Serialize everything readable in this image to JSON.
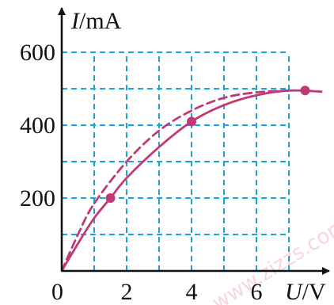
{
  "chart_data": {
    "type": "line",
    "xlabel": {
      "symbol": "U",
      "unit": "/V"
    },
    "ylabel": {
      "symbol": "I",
      "unit": "/mA"
    },
    "origin_label": "0",
    "xlim": [
      0,
      8
    ],
    "ylim": [
      0,
      600
    ],
    "x_ticks": [
      {
        "value": 2,
        "label": "2"
      },
      {
        "value": 4,
        "label": "4"
      },
      {
        "value": 6,
        "label": "6"
      }
    ],
    "y_ticks": [
      {
        "value": 200,
        "label": "200"
      },
      {
        "value": 400,
        "label": "400"
      },
      {
        "value": 600,
        "label": "600"
      }
    ],
    "grid": {
      "on": true,
      "x_step": 1,
      "y_step": 100,
      "x_max": 7,
      "y_max": 600,
      "color": "#1aa3d9"
    },
    "series": [
      {
        "style": "solid",
        "color": "#c03a78",
        "points": [
          {
            "x": 0,
            "y": 0
          },
          {
            "x": 0.5,
            "y": 75
          },
          {
            "x": 1,
            "y": 145
          },
          {
            "x": 1.5,
            "y": 200
          },
          {
            "x": 2,
            "y": 255
          },
          {
            "x": 3,
            "y": 340
          },
          {
            "x": 4,
            "y": 410
          },
          {
            "x": 5,
            "y": 455
          },
          {
            "x": 6,
            "y": 482
          },
          {
            "x": 7,
            "y": 495
          },
          {
            "x": 8,
            "y": 492
          }
        ]
      },
      {
        "style": "dashed",
        "color": "#c03a78",
        "points": [
          {
            "x": 0,
            "y": 0
          },
          {
            "x": 0.5,
            "y": 100
          },
          {
            "x": 1,
            "y": 185
          },
          {
            "x": 2,
            "y": 300
          },
          {
            "x": 3,
            "y": 385
          },
          {
            "x": 4,
            "y": 440
          },
          {
            "x": 5,
            "y": 475
          },
          {
            "x": 6,
            "y": 490
          },
          {
            "x": 7,
            "y": 495
          }
        ]
      }
    ],
    "markers": [
      {
        "x": 1.5,
        "y": 200,
        "color": "#c03a78"
      },
      {
        "x": 4,
        "y": 410,
        "color": "#c03a78"
      },
      {
        "x": 7.5,
        "y": 495,
        "color": "#c03a78"
      }
    ]
  },
  "watermark": {
    "text": "www.zizzs.com",
    "color": "#f3b6c2"
  }
}
